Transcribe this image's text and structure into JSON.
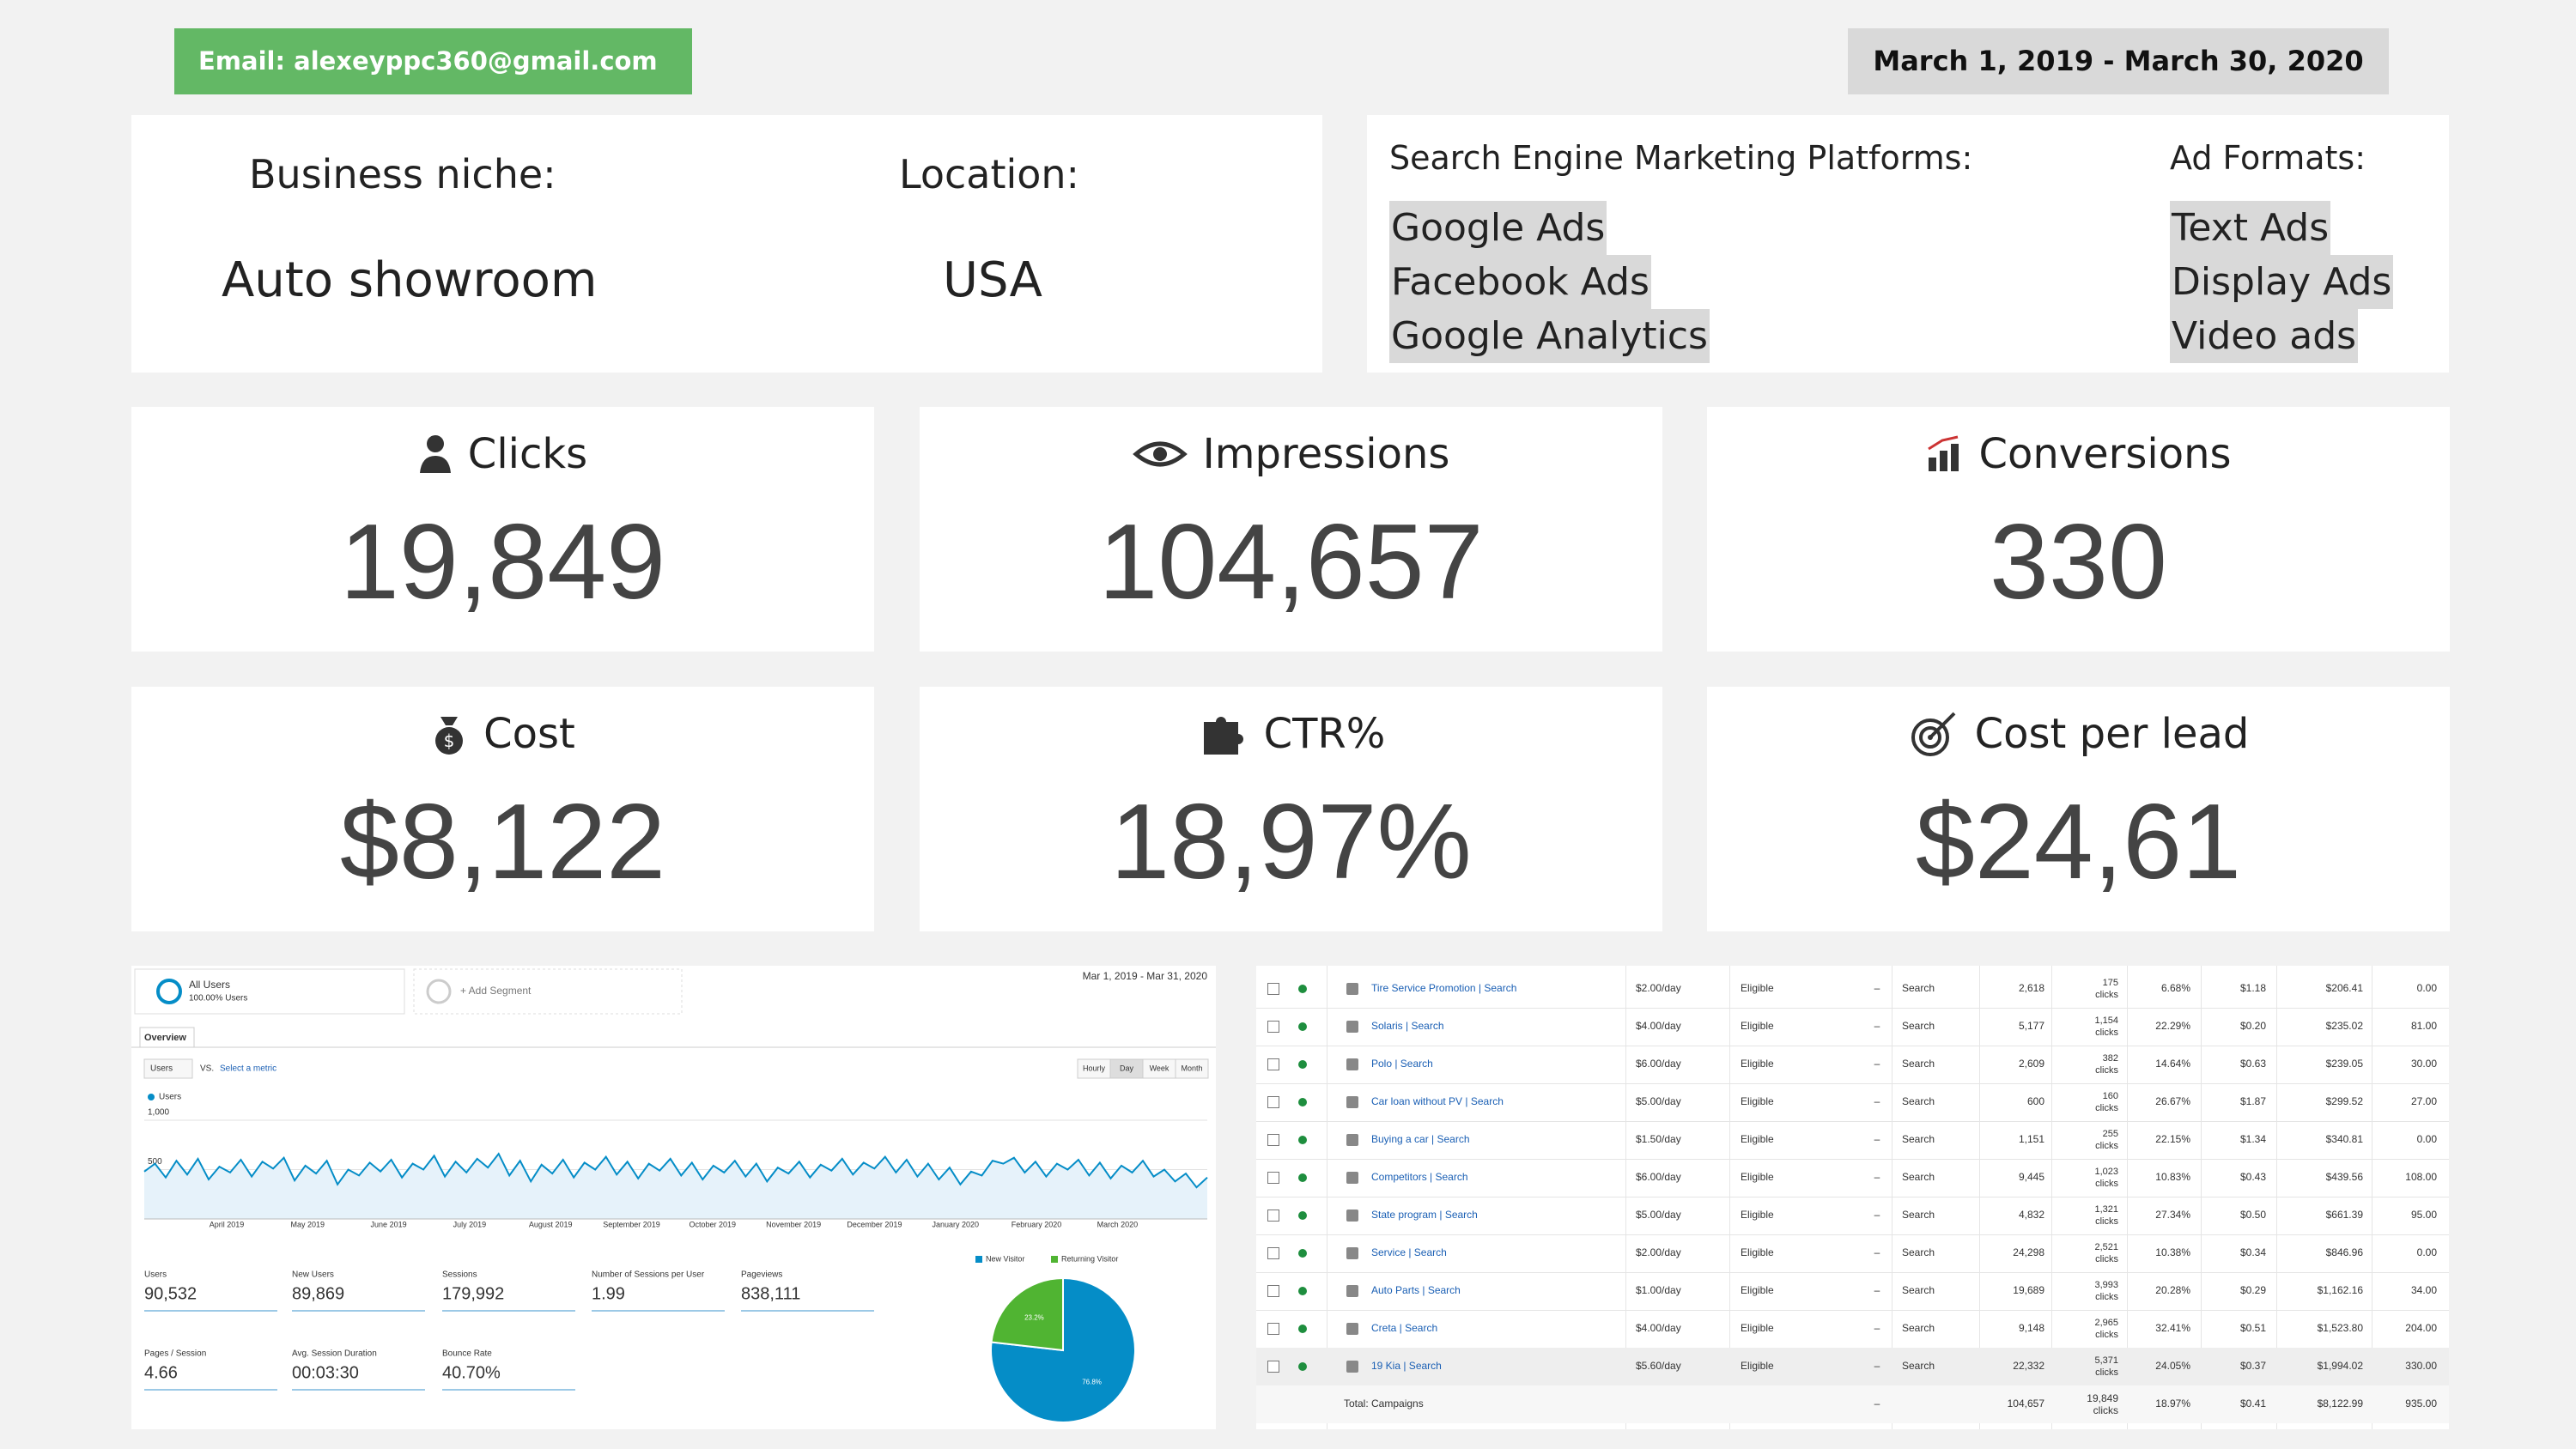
{
  "header": {
    "email": "Email: alexeyppc360@gmail.com",
    "date_range": "March 1, 2019 - March 30, 2020"
  },
  "business": {
    "niche_label": "Business niche:",
    "niche": "Auto showroom",
    "location_label": "Location:",
    "location": "USA"
  },
  "platforms": {
    "title": "Search Engine Marketing Platforms:",
    "items": [
      "Google Ads",
      "Facebook Ads",
      "Google Analytics"
    ]
  },
  "ad_formats": {
    "title": "Ad Formats:",
    "items": [
      "Text Ads",
      "Display Ads",
      "Video ads"
    ]
  },
  "kpis": [
    {
      "label": "Clicks",
      "value": "19,849"
    },
    {
      "label": "Impressions",
      "value": "104,657"
    },
    {
      "label": "Conversions",
      "value": "330"
    },
    {
      "label": "Cost",
      "value": "$8,122"
    },
    {
      "label": "CTR%",
      "value": "18,97%"
    },
    {
      "label": "Cost per lead",
      "value": "$24,61"
    }
  ],
  "analytics": {
    "segment": "All Users",
    "segment_share": "100.00% Users",
    "add_segment": "+ Add Segment",
    "date_range": "Mar 1, 2019 - Mar 31, 2020",
    "tab": "Overview",
    "metric_select": "Users",
    "vs": "VS.",
    "select_metric": "Select a metric",
    "granularity": [
      "Hourly",
      "Day",
      "Week",
      "Month"
    ],
    "chart": {
      "type": "line",
      "series_name": "Users",
      "color": "#058dc7",
      "ylim": [
        0,
        1000
      ],
      "yticks": [
        500,
        {
          "value": 1000,
          "label": "1,000"
        }
      ],
      "x_labels": [
        "April 2019",
        "May 2019",
        "June 2019",
        "July 2019",
        "August 2019",
        "September 2019",
        "October 2019",
        "November 2019",
        "December 2019",
        "January 2020",
        "February 2020",
        "March 2020"
      ],
      "values": [
        480,
        560,
        420,
        590,
        450,
        610,
        400,
        530,
        470,
        600,
        430,
        580,
        510,
        620,
        390,
        540,
        460,
        590,
        350,
        500,
        440,
        570,
        480,
        600,
        420,
        560,
        500,
        640,
        430,
        580,
        470,
        610,
        520,
        660,
        440,
        590,
        380,
        550,
        460,
        600,
        420,
        570,
        500,
        630,
        450,
        580,
        410,
        560,
        490,
        610,
        440,
        570,
        400,
        540,
        470,
        590,
        430,
        560,
        380,
        520,
        460,
        580,
        420,
        550,
        490,
        610,
        450,
        570,
        510,
        630,
        470,
        600,
        430,
        560,
        400,
        520,
        350,
        480,
        440,
        590,
        560,
        620,
        470,
        580,
        430,
        560,
        500,
        600,
        440,
        570,
        410,
        540,
        470,
        590,
        430,
        500,
        380,
        460,
        320,
        420
      ]
    },
    "metrics": [
      {
        "label": "Users",
        "value": "90,532"
      },
      {
        "label": "New Users",
        "value": "89,869"
      },
      {
        "label": "Sessions",
        "value": "179,992"
      },
      {
        "label": "Number of Sessions per User",
        "value": "1.99"
      },
      {
        "label": "Pageviews",
        "value": "838,111"
      },
      {
        "label": "Pages / Session",
        "value": "4.66"
      },
      {
        "label": "Avg. Session Duration",
        "value": "00:03:30"
      },
      {
        "label": "Bounce Rate",
        "value": "40.70%"
      }
    ],
    "pie": {
      "type": "pie",
      "categories": [
        "New Visitor",
        "Returning Visitor"
      ],
      "values": [
        76.8,
        23.2
      ],
      "value_labels": [
        "76.8%",
        "23.2%"
      ],
      "colors": [
        "#058dc7",
        "#50b432"
      ]
    }
  },
  "campaigns": {
    "rows": [
      [
        "Tire Service Promotion | Search",
        "$2.00/day",
        "Eligible",
        "–",
        "Search",
        "2,618",
        "175",
        "clicks",
        "6.68%",
        "$1.18",
        "$206.41",
        "0.00"
      ],
      [
        "Solaris | Search",
        "$4.00/day",
        "Eligible",
        "–",
        "Search",
        "5,177",
        "1,154",
        "clicks",
        "22.29%",
        "$0.20",
        "$235.02",
        "81.00"
      ],
      [
        "Polo | Search",
        "$6.00/day",
        "Eligible",
        "–",
        "Search",
        "2,609",
        "382",
        "clicks",
        "14.64%",
        "$0.63",
        "$239.05",
        "30.00"
      ],
      [
        "Car loan without PV | Search",
        "$5.00/day",
        "Eligible",
        "–",
        "Search",
        "600",
        "160",
        "clicks",
        "26.67%",
        "$1.87",
        "$299.52",
        "27.00"
      ],
      [
        "Buying a car | Search",
        "$1.50/day",
        "Eligible",
        "–",
        "Search",
        "1,151",
        "255",
        "clicks",
        "22.15%",
        "$1.34",
        "$340.81",
        "0.00"
      ],
      [
        "Competitors | Search",
        "$6.00/day",
        "Eligible",
        "–",
        "Search",
        "9,445",
        "1,023",
        "clicks",
        "10.83%",
        "$0.43",
        "$439.56",
        "108.00"
      ],
      [
        "State program | Search",
        "$5.00/day",
        "Eligible",
        "–",
        "Search",
        "4,832",
        "1,321",
        "clicks",
        "27.34%",
        "$0.50",
        "$661.39",
        "95.00"
      ],
      [
        "Service | Search",
        "$2.00/day",
        "Eligible",
        "–",
        "Search",
        "24,298",
        "2,521",
        "clicks",
        "10.38%",
        "$0.34",
        "$846.96",
        "0.00"
      ],
      [
        "Auto Parts | Search",
        "$1.00/day",
        "Eligible",
        "–",
        "Search",
        "19,689",
        "3,993",
        "clicks",
        "20.28%",
        "$0.29",
        "$1,162.16",
        "34.00"
      ],
      [
        "Creta | Search",
        "$4.00/day",
        "Eligible",
        "–",
        "Search",
        "9,148",
        "2,965",
        "clicks",
        "32.41%",
        "$0.51",
        "$1,523.80",
        "204.00"
      ],
      [
        "19 Kia | Search",
        "$5.60/day",
        "Eligible",
        "–",
        "Search",
        "22,332",
        "5,371",
        "clicks",
        "24.05%",
        "$0.37",
        "$1,994.02",
        "330.00"
      ]
    ],
    "total": [
      "Total: Campaigns",
      "–",
      "104,657",
      "19,849",
      "clicks",
      "18.97%",
      "$0.41",
      "$8,122.99",
      "935.00"
    ]
  }
}
